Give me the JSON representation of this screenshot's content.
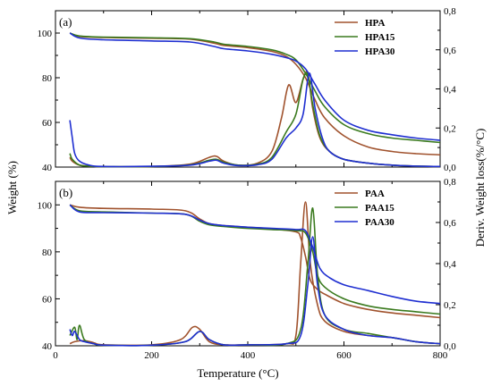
{
  "chart_data": [
    {
      "type": "line",
      "panel_label": "(a)",
      "legend_placement": "top-right",
      "xlim": [
        0,
        800
      ],
      "ylim_left": [
        40,
        110
      ],
      "ylim_right": [
        0,
        0.8
      ],
      "left_ticks": [
        "40",
        "60",
        "80",
        "100"
      ],
      "right_ticks": [
        "0,0",
        "0,2",
        "0,4",
        "0,6",
        "0,8"
      ],
      "series": [
        {
          "name": "HPA",
          "color": "#a0522d",
          "weight": {
            "x": [
              30,
              50,
              100,
              200,
              280,
              330,
              350,
              400,
              450,
              480,
              500,
              520,
              540,
              560,
              600,
              650,
              700,
              750,
              800
            ],
            "y": [
              100,
              98.5,
              98,
              97.7,
              97.3,
              95.5,
              94.5,
              93.5,
              91.8,
              89.5,
              86,
              80,
              70,
              62,
              54,
              49,
              47,
              46,
              45.5
            ]
          },
          "deriv": {
            "x": [
              30,
              35,
              50,
              70,
              100,
              200,
              280,
              320,
              335,
              350,
              380,
              420,
              450,
              470,
              485,
              500,
              515,
              525,
              535,
              550,
              570,
              600,
              650,
              700,
              750,
              800
            ],
            "y": [
              0.05,
              0.03,
              0.01,
              0.005,
              0.002,
              0.003,
              0.015,
              0.05,
              0.055,
              0.03,
              0.01,
              0.02,
              0.08,
              0.25,
              0.42,
              0.33,
              0.45,
              0.48,
              0.3,
              0.15,
              0.08,
              0.04,
              0.02,
              0.01,
              0.005,
              0.003
            ]
          }
        },
        {
          "name": "HPA15",
          "color": "#3a7a1e",
          "weight": {
            "x": [
              30,
              50,
              100,
              200,
              280,
              330,
              350,
              400,
              450,
              480,
              500,
              520,
              540,
              560,
              600,
              650,
              700,
              750,
              800
            ],
            "y": [
              100,
              98.7,
              98.2,
              97.9,
              97.5,
              96,
              95,
              94,
              92.5,
              90.5,
              88,
              82,
              74,
              67,
              59,
              55,
              53,
              52,
              51
            ]
          },
          "deriv": {
            "x": [
              30,
              35,
              50,
              70,
              100,
              200,
              280,
              320,
              335,
              350,
              380,
              420,
              450,
              480,
              500,
              515,
              525,
              535,
              550,
              570,
              600,
              650,
              700,
              750,
              800
            ],
            "y": [
              0.07,
              0.04,
              0.01,
              0.005,
              0.002,
              0.003,
              0.012,
              0.035,
              0.04,
              0.025,
              0.01,
              0.015,
              0.05,
              0.18,
              0.27,
              0.45,
              0.47,
              0.32,
              0.16,
              0.08,
              0.04,
              0.02,
              0.01,
              0.005,
              0.003
            ]
          }
        },
        {
          "name": "HPA30",
          "color": "#1f2fd1",
          "weight": {
            "x": [
              30,
              50,
              100,
              200,
              280,
              330,
              350,
              400,
              450,
              480,
              500,
              520,
              540,
              560,
              600,
              650,
              700,
              750,
              800
            ],
            "y": [
              100,
              97.8,
              97,
              96.5,
              96,
              94,
              93,
              92,
              90.5,
              89,
              87.5,
              84,
              77,
              70,
              61,
              56.5,
              54.5,
              53,
              52
            ]
          },
          "deriv": {
            "x": [
              30,
              35,
              40,
              50,
              70,
              100,
              200,
              280,
              320,
              335,
              350,
              380,
              420,
              450,
              480,
              500,
              515,
              528,
              540,
              555,
              570,
              600,
              650,
              700,
              750,
              800
            ],
            "y": [
              0.24,
              0.15,
              0.07,
              0.03,
              0.01,
              0.003,
              0.004,
              0.01,
              0.03,
              0.035,
              0.02,
              0.008,
              0.012,
              0.04,
              0.15,
              0.2,
              0.27,
              0.48,
              0.3,
              0.15,
              0.08,
              0.04,
              0.02,
              0.01,
              0.005,
              0.003
            ]
          }
        }
      ]
    },
    {
      "type": "line",
      "panel_label": "(b)",
      "legend_placement": "top-right",
      "xlim": [
        0,
        800
      ],
      "ylim_left": [
        40,
        110
      ],
      "ylim_right": [
        0,
        0.8
      ],
      "left_ticks": [
        "40",
        "60",
        "80",
        "100"
      ],
      "right_ticks": [
        "0,0",
        "0,2",
        "0,4",
        "0,6",
        "0,8"
      ],
      "series": [
        {
          "name": "PAA",
          "color": "#a0522d",
          "weight": {
            "x": [
              30,
              50,
              100,
              200,
              270,
              300,
              320,
              350,
              400,
              450,
              500,
              510,
              520,
              530,
              545,
              560,
              600,
              650,
              700,
              750,
              800
            ],
            "y": [
              100,
              99,
              98.5,
              98.2,
              97.5,
              94,
              92,
              91.2,
              90.5,
              89.8,
              88.5,
              86,
              78,
              68,
              64,
              62,
              58,
              55.5,
              54,
              53,
              52
            ]
          },
          "deriv": {
            "x": [
              30,
              40,
              60,
              80,
              100,
              200,
              260,
              285,
              300,
              320,
              350,
              400,
              480,
              500,
              510,
              520,
              530,
              545,
              560,
              600,
              650,
              700,
              750,
              800
            ],
            "y": [
              0.01,
              0.02,
              0.025,
              0.015,
              0.005,
              0.005,
              0.03,
              0.09,
              0.08,
              0.02,
              0.005,
              0.005,
              0.01,
              0.05,
              0.4,
              0.7,
              0.4,
              0.2,
              0.12,
              0.07,
              0.05,
              0.04,
              0.02,
              0.01
            ]
          }
        },
        {
          "name": "PAA15",
          "color": "#3a7a1e",
          "weight": {
            "x": [
              30,
              50,
              100,
              200,
              270,
              300,
              320,
              350,
              400,
              450,
              500,
              520,
              535,
              545,
              560,
              600,
              650,
              700,
              750,
              800
            ],
            "y": [
              100,
              97.5,
              97,
              96.5,
              96,
              93,
              91.5,
              90.8,
              90,
              89.5,
              89,
              88,
              80,
              70,
              65,
              60,
              57,
              55.5,
              54.5,
              53.5
            ]
          },
          "deriv": {
            "x": [
              30,
              40,
              45,
              50,
              60,
              80,
              100,
              200,
              270,
              300,
              320,
              350,
              400,
              480,
              510,
              525,
              535,
              545,
              560,
              600,
              650,
              700,
              750,
              800
            ],
            "y": [
              0.05,
              0.09,
              0.03,
              0.1,
              0.03,
              0.01,
              0.003,
              0.003,
              0.02,
              0.07,
              0.03,
              0.005,
              0.005,
              0.01,
              0.08,
              0.4,
              0.67,
              0.35,
              0.15,
              0.08,
              0.06,
              0.04,
              0.02,
              0.01
            ]
          }
        },
        {
          "name": "PAA30",
          "color": "#1f2fd1",
          "weight": {
            "x": [
              30,
              50,
              100,
              200,
              270,
              300,
              320,
              350,
              400,
              450,
              500,
              520,
              535,
              550,
              570,
              600,
              650,
              700,
              750,
              800
            ],
            "y": [
              100,
              97,
              96.7,
              96.5,
              96,
              93.5,
              92,
              91.2,
              90.5,
              90,
              89.5,
              89,
              82,
              73,
              69,
              66,
              63.5,
              61,
              59,
              58
            ]
          },
          "deriv": {
            "x": [
              30,
              35,
              40,
              50,
              60,
              80,
              100,
              200,
              270,
              300,
              320,
              350,
              400,
              480,
              510,
              525,
              535,
              545,
              560,
              600,
              650,
              700,
              750,
              800
            ],
            "y": [
              0.08,
              0.05,
              0.07,
              0.03,
              0.02,
              0.01,
              0.003,
              0.003,
              0.02,
              0.07,
              0.03,
              0.005,
              0.005,
              0.01,
              0.05,
              0.3,
              0.53,
              0.3,
              0.15,
              0.08,
              0.05,
              0.04,
              0.02,
              0.01
            ]
          }
        }
      ]
    }
  ],
  "xlabel": "Temperature (°C)",
  "ylabel_left": "Weight (%)",
  "ylabel_right": "Deriv. Weight loss(%/°C)",
  "x_ticks": [
    "0",
    "200",
    "400",
    "600",
    "800"
  ]
}
